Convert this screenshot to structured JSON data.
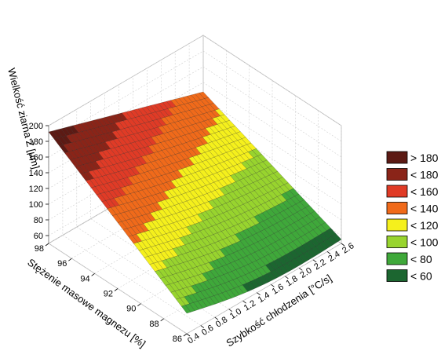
{
  "chart_data": {
    "type": "surface3d",
    "zlabel": "Wielkość ziarna Z [µm]",
    "ylabel": "Stężenie masowe magnezu [%]",
    "xlabel": "Szybkość chłodzenia [°C/s]",
    "z_ticks": [
      "200",
      "180",
      "160",
      "140",
      "120",
      "100",
      "80",
      "60"
    ],
    "z_tick_values": [
      200,
      180,
      160,
      140,
      120,
      100,
      80,
      60
    ],
    "y_ticks": [
      "98",
      "96",
      "94",
      "92",
      "90",
      "88",
      "86"
    ],
    "y_tick_values": [
      98,
      96,
      94,
      92,
      90,
      88,
      86
    ],
    "x_ticks": [
      "0.4",
      "0.6",
      "0.8",
      "1.0",
      "1.2",
      "1.4",
      "1.6",
      "1.8",
      "2.0",
      "2.2",
      "2.4",
      "2.6"
    ],
    "x_tick_values": [
      0.4,
      0.6,
      0.8,
      1.0,
      1.2,
      1.4,
      1.6,
      1.8,
      2.0,
      2.2,
      2.4,
      2.6
    ],
    "x_range": [
      0.4,
      2.6
    ],
    "y_range": [
      86,
      98
    ],
    "z_range": [
      50,
      200
    ],
    "corner_values": {
      "x_min_y_max": 192,
      "x_min_y_min": 76,
      "x_max_y_max": 128,
      "x_max_y_min": 55
    },
    "legend": [
      {
        "label": "> 180",
        "color": "#5c1a14"
      },
      {
        "label": "< 180",
        "color": "#8a2418"
      },
      {
        "label": "< 160",
        "color": "#e03b26"
      },
      {
        "label": "< 140",
        "color": "#f06a1a"
      },
      {
        "label": "< 120",
        "color": "#f5f01c"
      },
      {
        "label": "< 100",
        "color": "#98d42e"
      },
      {
        "label": "< 80",
        "color": "#3fa83a"
      },
      {
        "label": "< 60",
        "color": "#1c6630"
      }
    ],
    "legend_placement": "right",
    "grid": true
  }
}
